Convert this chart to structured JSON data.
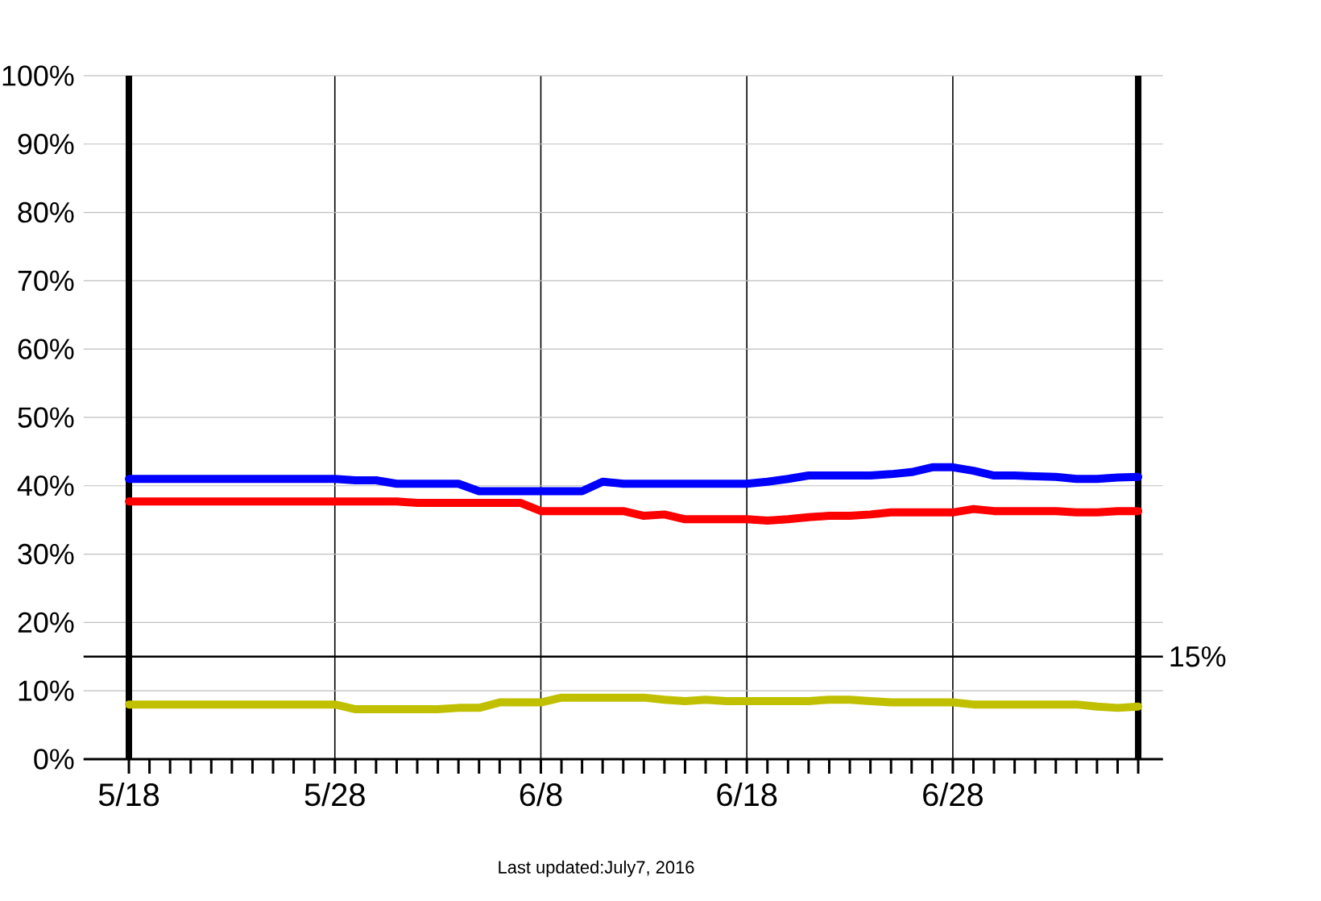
{
  "chart_data": {
    "type": "line",
    "categories": [
      "5/18",
      null,
      null,
      null,
      null,
      null,
      null,
      null,
      null,
      null,
      "5/28",
      null,
      null,
      null,
      null,
      null,
      null,
      null,
      null,
      null,
      "6/8",
      null,
      null,
      null,
      null,
      null,
      null,
      null,
      null,
      null,
      "6/18",
      null,
      null,
      null,
      null,
      null,
      null,
      null,
      null,
      null,
      "6/28",
      null,
      null,
      null,
      null,
      null,
      null,
      null,
      null,
      null
    ],
    "series": [
      {
        "color": "#0000ff",
        "values": [
          41.0,
          41.0,
          41.0,
          41.0,
          41.0,
          41.0,
          41.0,
          41.0,
          41.0,
          41.0,
          41.0,
          40.8,
          40.8,
          40.3,
          40.3,
          40.3,
          40.3,
          39.2,
          39.2,
          39.2,
          39.2,
          39.2,
          39.2,
          40.6,
          40.3,
          40.3,
          40.3,
          40.3,
          40.3,
          40.3,
          40.3,
          40.6,
          41.0,
          41.5,
          41.5,
          41.5,
          41.5,
          41.7,
          42.0,
          42.7,
          42.7,
          42.2,
          41.5,
          41.5,
          41.4,
          41.3,
          41.0,
          41.0,
          41.2,
          41.3
        ]
      },
      {
        "color": "#ff0000",
        "values": [
          37.7,
          37.7,
          37.7,
          37.7,
          37.7,
          37.7,
          37.7,
          37.7,
          37.7,
          37.7,
          37.7,
          37.7,
          37.7,
          37.7,
          37.5,
          37.5,
          37.5,
          37.5,
          37.5,
          37.5,
          36.3,
          36.3,
          36.3,
          36.3,
          36.3,
          35.6,
          35.8,
          35.1,
          35.1,
          35.1,
          35.1,
          34.9,
          35.1,
          35.4,
          35.6,
          35.6,
          35.8,
          36.1,
          36.1,
          36.1,
          36.1,
          36.6,
          36.3,
          36.3,
          36.3,
          36.3,
          36.1,
          36.1,
          36.3,
          36.3
        ]
      },
      {
        "color": "#c0c000",
        "values": [
          8.0,
          8.0,
          8.0,
          8.0,
          8.0,
          8.0,
          8.0,
          8.0,
          8.0,
          8.0,
          8.0,
          7.3,
          7.3,
          7.3,
          7.3,
          7.3,
          7.5,
          7.5,
          8.3,
          8.3,
          8.3,
          9.0,
          9.0,
          9.0,
          9.0,
          9.0,
          8.7,
          8.5,
          8.7,
          8.5,
          8.5,
          8.5,
          8.5,
          8.5,
          8.7,
          8.7,
          8.5,
          8.3,
          8.3,
          8.3,
          8.3,
          8.0,
          8.0,
          8.0,
          8.0,
          8.0,
          8.0,
          7.7,
          7.5,
          7.7
        ]
      }
    ],
    "ylim": [
      0,
      100
    ],
    "yticks": [
      {
        "value": 0,
        "label": "0%"
      },
      {
        "value": 10,
        "label": "10%"
      },
      {
        "value": 20,
        "label": "20%"
      },
      {
        "value": 30,
        "label": "30%"
      },
      {
        "value": 40,
        "label": "40%"
      },
      {
        "value": 50,
        "label": "50%"
      },
      {
        "value": 60,
        "label": "60%"
      },
      {
        "value": 70,
        "label": "70%"
      },
      {
        "value": 80,
        "label": "80%"
      },
      {
        "value": 90,
        "label": "90%"
      },
      {
        "value": 100,
        "label": "100%"
      }
    ],
    "grid": true,
    "marker": "none",
    "line_style": "solid",
    "ref_lines": [
      {
        "axis": "y",
        "value": 15,
        "label": "15%",
        "color": "#000000"
      }
    ],
    "annotations": [
      "Last updated:July7, 2016"
    ]
  }
}
